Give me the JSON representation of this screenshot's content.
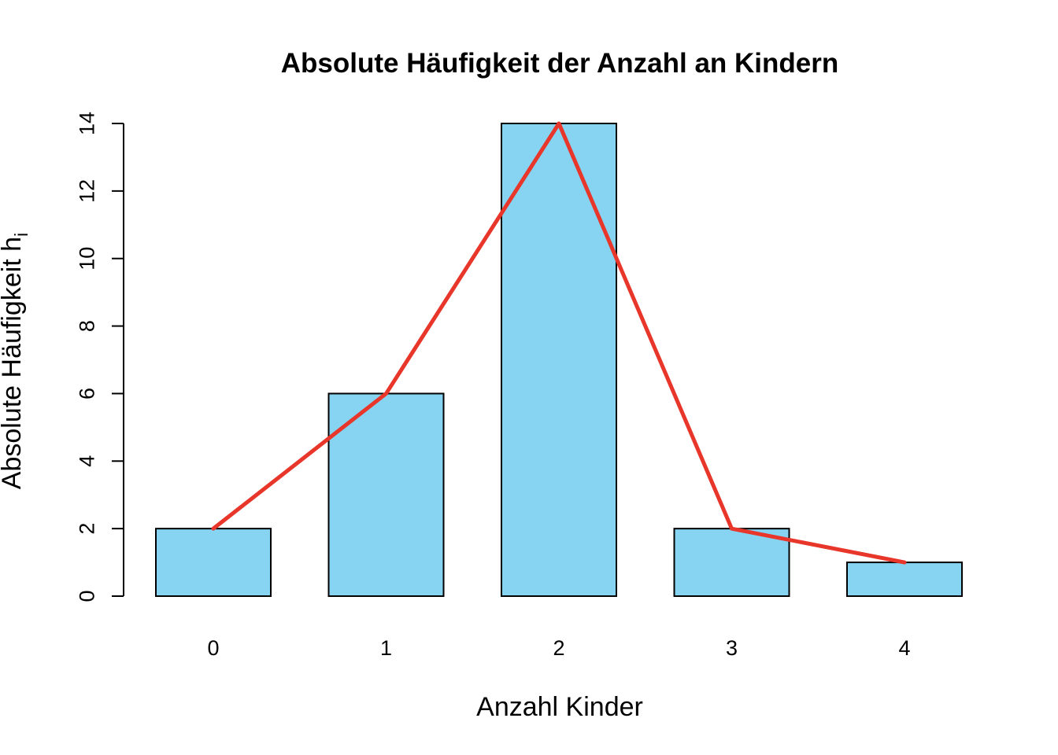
{
  "chart_data": {
    "type": "bar",
    "title": "Absolute Häufigkeit der Anzahl an Kindern",
    "xlabel": "Anzahl Kinder",
    "ylabel": "Absolute Häufigkeit h",
    "ylabel_subscript": "i",
    "categories": [
      "0",
      "1",
      "2",
      "3",
      "4"
    ],
    "values": [
      2,
      6,
      14,
      2,
      1
    ],
    "ylim": [
      0,
      14
    ],
    "yticks": [
      0,
      2,
      4,
      6,
      8,
      10,
      12,
      14
    ],
    "grid": false,
    "bar_color": "#87d3f2",
    "overlay_line": {
      "type": "line",
      "values": [
        2,
        6,
        14,
        2,
        1
      ],
      "color": "#e8362a"
    }
  }
}
